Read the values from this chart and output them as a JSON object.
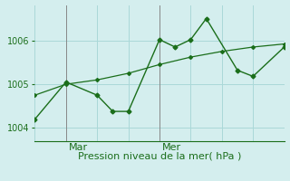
{
  "xlabel": "Pression niveau de la mer( hPa )",
  "ylim": [
    1003.7,
    1006.8
  ],
  "xlim": [
    0,
    16
  ],
  "yticks": [
    1004,
    1005,
    1006
  ],
  "bg_color": "#d4eeee",
  "grid_color": "#aad8d8",
  "line_color": "#1a6e1a",
  "vline_color": "#888888",
  "x_jagged": [
    0,
    2,
    4,
    5,
    6,
    8,
    9,
    10,
    11,
    13,
    14,
    16
  ],
  "y_jagged": [
    1004.2,
    1005.05,
    1004.75,
    1004.38,
    1004.38,
    1006.02,
    1005.85,
    1006.02,
    1006.5,
    1005.32,
    1005.18,
    1005.85
  ],
  "x_smooth": [
    0,
    2,
    4,
    6,
    8,
    10,
    12,
    14,
    16
  ],
  "y_smooth": [
    1004.75,
    1005.0,
    1005.1,
    1005.25,
    1005.45,
    1005.62,
    1005.75,
    1005.85,
    1005.92
  ],
  "vline_positions": [
    2,
    8
  ],
  "vline_labels": [
    "Mar",
    "Mer"
  ],
  "label_fontsize": 8,
  "tick_fontsize": 7,
  "fig_width": 3.2,
  "fig_height": 2.0,
  "dpi": 100
}
